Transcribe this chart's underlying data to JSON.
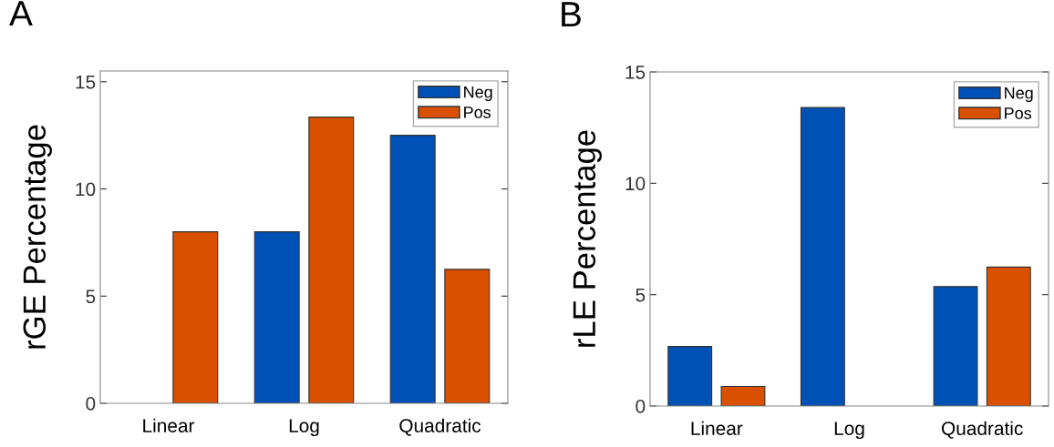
{
  "chart_data": [
    {
      "type": "bar",
      "categories": [
        "Linear",
        "Log",
        "Quadratic"
      ],
      "ylabel": "rGE Percentage",
      "annotations": [
        "A"
      ],
      "series": [
        {
          "name": "Neg",
          "color": "#0051b5",
          "values": [
            null,
            8.0,
            12.5
          ]
        },
        {
          "name": "Pos",
          "color": "#d95000",
          "values": [
            8.0,
            13.35,
            6.25
          ]
        }
      ],
      "ylim": [
        0,
        15.5
      ],
      "yticks": [
        0,
        5,
        10,
        15
      ],
      "grid": false,
      "legend": "top right"
    },
    {
      "type": "bar",
      "categories": [
        "Linear",
        "Log",
        "Quadratic"
      ],
      "ylabel": "rLE Percentage",
      "annotations": [
        "B"
      ],
      "series": [
        {
          "name": "Neg",
          "color": "#0051b5",
          "values": [
            2.67,
            13.4,
            5.36
          ]
        },
        {
          "name": "Pos",
          "color": "#d95000",
          "values": [
            0.88,
            null,
            6.24
          ]
        }
      ],
      "ylim": [
        0,
        15
      ],
      "yticks": [
        0,
        5,
        10,
        15
      ],
      "grid": false,
      "legend": "top right"
    }
  ]
}
